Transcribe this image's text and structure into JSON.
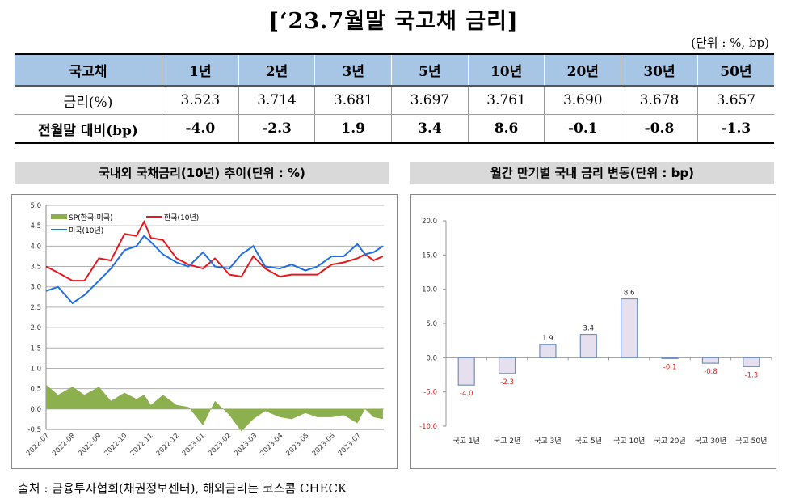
{
  "title": "[‘23.7월말 국고채 금리]",
  "unit": "(단위 : %, bp)",
  "table": {
    "headers": [
      "국고채",
      "1년",
      "2년",
      "3년",
      "5년",
      "10년",
      "20년",
      "30년",
      "50년"
    ],
    "rows": [
      [
        "금리(%)",
        "3.523",
        "3.714",
        "3.681",
        "3.697",
        "3.761",
        "3.690",
        "3.678",
        "3.657"
      ],
      [
        "전월말 대비(bp)",
        "-4.0",
        "-2.3",
        "1.9",
        "3.4",
        "8.6",
        "-0.1",
        "-0.8",
        "-1.3"
      ]
    ]
  },
  "section_left": "국내외 국채금리(10년) 추이(단위 : %)",
  "section_right": "월간 만기별 국내 금리 변동(단위 : bp)",
  "footer": "출처 : 금융투자협회(채권정보센터), 해외금리는 코스콤 CHECK",
  "colors": {
    "korea": "#e8161b",
    "us": "#1f6fe0",
    "spread": "#8db04e",
    "bar_fill": "#e6e0ee",
    "bar_stroke": "#6f8fc0",
    "neg_label": "#e02020",
    "header_bg": "#a7c5e5"
  },
  "chart_data": [
    {
      "type": "line",
      "ylim": [
        -0.5,
        5.0
      ],
      "yticks": [
        "5.0",
        "4.5",
        "4.0",
        "3.5",
        "3.0",
        "2.5",
        "2.0",
        "1.5",
        "1.0",
        "0.5",
        "0.0",
        "-0.5"
      ],
      "xticks": [
        "2022-07",
        "2022-08",
        "2022-09",
        "2022-10",
        "2022-11",
        "2022-12",
        "2023-01",
        "2023-02",
        "2023-03",
        "2023-04",
        "2023-05",
        "2023-06",
        "2023-07"
      ],
      "grid": true,
      "legend": "top-left",
      "x": [
        "2022-07-01",
        "2022-07-15",
        "2022-08-01",
        "2022-08-15",
        "2022-09-01",
        "2022-09-15",
        "2022-10-01",
        "2022-10-15",
        "2022-10-24",
        "2022-11-01",
        "2022-11-15",
        "2022-12-01",
        "2022-12-15",
        "2023-01-01",
        "2023-01-15",
        "2023-02-01",
        "2023-02-15",
        "2023-03-01",
        "2023-03-15",
        "2023-04-01",
        "2023-04-15",
        "2023-05-01",
        "2023-05-15",
        "2023-06-01",
        "2023-06-15",
        "2023-07-01",
        "2023-07-10",
        "2023-07-20",
        "2023-07-31"
      ],
      "series": [
        {
          "name": "SP(한국-미국)",
          "kind": "area",
          "values": [
            0.6,
            0.35,
            0.55,
            0.35,
            0.55,
            0.2,
            0.4,
            0.25,
            0.35,
            0.1,
            0.35,
            0.1,
            0.05,
            -0.4,
            0.2,
            -0.15,
            -0.55,
            -0.25,
            -0.05,
            -0.2,
            -0.25,
            -0.1,
            -0.2,
            -0.2,
            -0.15,
            -0.35,
            0,
            -0.2,
            -0.25
          ]
        },
        {
          "name": "한국(10년)",
          "kind": "line",
          "values": [
            3.5,
            3.35,
            3.15,
            3.15,
            3.7,
            3.65,
            4.3,
            4.25,
            4.6,
            4.2,
            4.15,
            3.7,
            3.55,
            3.45,
            3.7,
            3.3,
            3.25,
            3.75,
            3.45,
            3.25,
            3.3,
            3.3,
            3.3,
            3.55,
            3.6,
            3.7,
            3.8,
            3.65,
            3.75
          ]
        },
        {
          "name": "미국(10년)",
          "kind": "line",
          "values": [
            2.9,
            3.0,
            2.6,
            2.8,
            3.15,
            3.45,
            3.9,
            4.0,
            4.25,
            4.1,
            3.8,
            3.6,
            3.5,
            3.85,
            3.5,
            3.45,
            3.8,
            4.0,
            3.5,
            3.45,
            3.55,
            3.4,
            3.5,
            3.75,
            3.75,
            4.05,
            3.8,
            3.85,
            4.0
          ]
        }
      ]
    },
    {
      "type": "bar",
      "ylim": [
        -10,
        20
      ],
      "yticks": [
        "20.0",
        "15.0",
        "10.0",
        "5.0",
        "0.0",
        "-5.0",
        "-10.0"
      ],
      "categories": [
        "국고 1년",
        "국고 2년",
        "국고 3년",
        "국고 5년",
        "국고 10년",
        "국고 20년",
        "국고 30년",
        "국고 50년"
      ],
      "values": [
        -4.0,
        -2.3,
        1.9,
        3.4,
        8.6,
        -0.1,
        -0.8,
        -1.3
      ],
      "labels": [
        "-4.0",
        "-2.3",
        "1.9",
        "3.4",
        "8.6",
        "-0.1",
        "-0.8",
        "-1.3"
      ]
    }
  ]
}
